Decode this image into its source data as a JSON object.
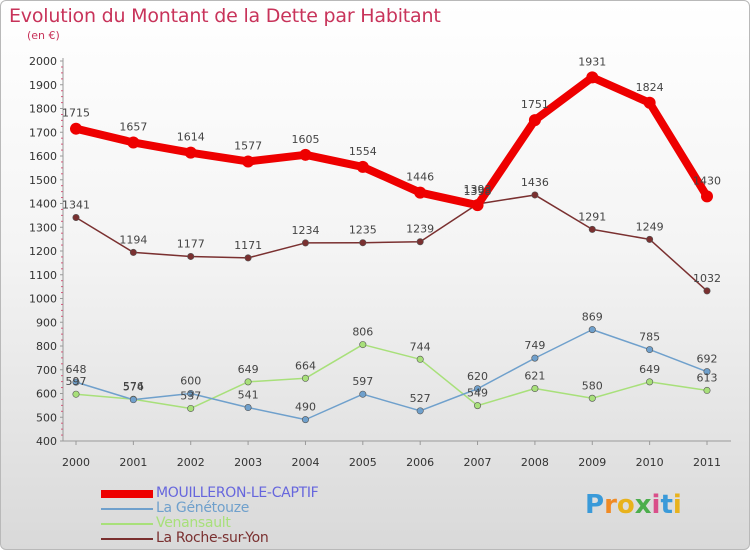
{
  "title": "Evolution du Montant de la Dette par Habitant",
  "subtitle": "(en €)",
  "logo": {
    "letters": [
      "P",
      "r",
      "o",
      "x",
      "i",
      "t",
      "i"
    ],
    "colors": [
      "#3a9ad9",
      "#f08a24",
      "#e8b21c",
      "#4cae4c",
      "#d94f8a",
      "#3a9ad9",
      "#e8b21c"
    ]
  },
  "chart_data": {
    "type": "line",
    "x": [
      2000,
      2001,
      2002,
      2003,
      2004,
      2005,
      2006,
      2007,
      2008,
      2009,
      2010,
      2011
    ],
    "ylim": [
      400,
      2000
    ],
    "yticks": [
      400,
      500,
      600,
      700,
      800,
      900,
      1000,
      1100,
      1200,
      1300,
      1400,
      1500,
      1600,
      1700,
      1800,
      1900,
      2000
    ],
    "grid": false,
    "legend_position": "bottom-left",
    "series": [
      {
        "name": "MOUILLERON-LE-CAPTIF",
        "color": "#ee0000",
        "label_color": "#6666dd",
        "values": [
          1715,
          1657,
          1614,
          1577,
          1605,
          1554,
          1446,
          1393,
          1751,
          1931,
          1824,
          1430
        ]
      },
      {
        "name": "La Génétouze",
        "color": "#6fa0cc",
        "label_color": "#6fa0cc",
        "values": [
          648,
          574,
          600,
          541,
          490,
          597,
          527,
          620,
          749,
          869,
          785,
          692
        ]
      },
      {
        "name": "Venansault",
        "color": "#a8e07a",
        "label_color": "#a8e07a",
        "values": [
          597,
          576,
          537,
          649,
          664,
          806,
          744,
          549,
          621,
          580,
          649,
          613
        ]
      },
      {
        "name": "La Roche-sur-Yon",
        "color": "#7a3030",
        "label_color": "#7a3030",
        "values": [
          1341,
          1194,
          1177,
          1171,
          1234,
          1235,
          1239,
          1398,
          1436,
          1291,
          1249,
          1032
        ]
      }
    ]
  }
}
